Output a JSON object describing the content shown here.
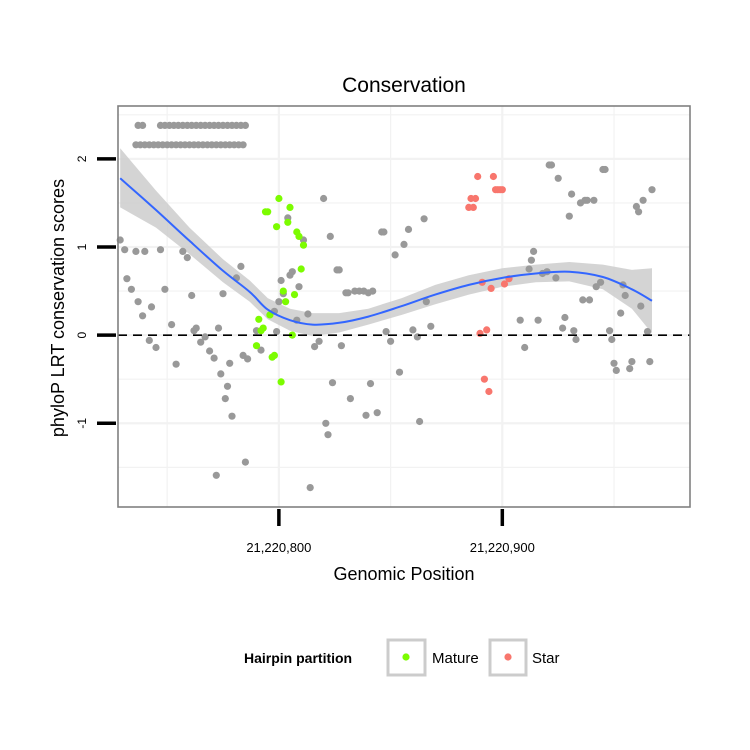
{
  "chart_data": {
    "type": "scatter",
    "title": "Conservation",
    "xlabel": "Genomic Position",
    "ylabel": "phyloP LRT conservation scores",
    "xlim": [
      21220728,
      21220984
    ],
    "ylim": [
      -1.95,
      2.6
    ],
    "x_ticks": [
      21220800,
      21220900
    ],
    "x_tick_labels": [
      "21,220,800",
      "21,220,900"
    ],
    "y_ticks": [
      -1,
      0,
      1,
      2
    ],
    "y_tick_labels": [
      "-1",
      "0",
      "1",
      "2"
    ],
    "grid": true,
    "reference_line": {
      "y": 0,
      "style": "dashed"
    },
    "legend": {
      "title": "Hairpin partition",
      "position": "bottom",
      "entries": [
        {
          "name": "Mature",
          "color": "#7cfc00"
        },
        {
          "name": "Star",
          "color": "#f8766d"
        }
      ]
    },
    "colors": {
      "other": "#999999",
      "smooth_line": "#3366ff",
      "ribbon": "#cccccc",
      "panel_border": "#808080"
    },
    "series": [
      {
        "name": "",
        "color": "#999999",
        "points": [
          [
            21220737,
            2.38
          ],
          [
            21220739,
            2.38
          ],
          [
            21220747,
            2.38
          ],
          [
            21220749,
            2.38
          ],
          [
            21220751,
            2.38
          ],
          [
            21220753,
            2.38
          ],
          [
            21220755,
            2.38
          ],
          [
            21220757,
            2.38
          ],
          [
            21220759,
            2.38
          ],
          [
            21220761,
            2.38
          ],
          [
            21220763,
            2.38
          ],
          [
            21220765,
            2.38
          ],
          [
            21220767,
            2.38
          ],
          [
            21220769,
            2.38
          ],
          [
            21220771,
            2.38
          ],
          [
            21220773,
            2.38
          ],
          [
            21220775,
            2.38
          ],
          [
            21220777,
            2.38
          ],
          [
            21220779,
            2.38
          ],
          [
            21220781,
            2.38
          ],
          [
            21220783,
            2.38
          ],
          [
            21220785,
            2.38
          ],
          [
            21220736,
            2.16
          ],
          [
            21220738,
            2.16
          ],
          [
            21220740,
            2.16
          ],
          [
            21220742,
            2.16
          ],
          [
            21220744,
            2.16
          ],
          [
            21220746,
            2.16
          ],
          [
            21220748,
            2.16
          ],
          [
            21220750,
            2.16
          ],
          [
            21220752,
            2.16
          ],
          [
            21220754,
            2.16
          ],
          [
            21220756,
            2.16
          ],
          [
            21220758,
            2.16
          ],
          [
            21220760,
            2.16
          ],
          [
            21220762,
            2.16
          ],
          [
            21220764,
            2.16
          ],
          [
            21220766,
            2.16
          ],
          [
            21220768,
            2.16
          ],
          [
            21220770,
            2.16
          ],
          [
            21220772,
            2.16
          ],
          [
            21220774,
            2.16
          ],
          [
            21220776,
            2.16
          ],
          [
            21220778,
            2.16
          ],
          [
            21220780,
            2.16
          ],
          [
            21220782,
            2.16
          ],
          [
            21220784,
            2.16
          ],
          [
            21220729,
            1.08
          ],
          [
            21220731,
            0.97
          ],
          [
            21220732,
            0.64
          ],
          [
            21220734,
            0.52
          ],
          [
            21220736,
            0.95
          ],
          [
            21220737,
            0.38
          ],
          [
            21220739,
            0.22
          ],
          [
            21220740,
            0.95
          ],
          [
            21220742,
            -0.06
          ],
          [
            21220743,
            0.32
          ],
          [
            21220745,
            -0.14
          ],
          [
            21220747,
            0.97
          ],
          [
            21220749,
            0.52
          ],
          [
            21220752,
            0.12
          ],
          [
            21220754,
            -0.33
          ],
          [
            21220757,
            0.95
          ],
          [
            21220759,
            0.88
          ],
          [
            21220761,
            0.45
          ],
          [
            21220762,
            0.05
          ],
          [
            21220763,
            0.08
          ],
          [
            21220765,
            -0.08
          ],
          [
            21220767,
            -0.02
          ],
          [
            21220769,
            -0.18
          ],
          [
            21220771,
            -0.26
          ],
          [
            21220773,
            0.08
          ],
          [
            21220774,
            -0.44
          ],
          [
            21220775,
            0.47
          ],
          [
            21220776,
            -0.72
          ],
          [
            21220777,
            -0.58
          ],
          [
            21220778,
            -0.32
          ],
          [
            21220779,
            -0.92
          ],
          [
            21220781,
            0.65
          ],
          [
            21220783,
            0.78
          ],
          [
            21220784,
            -0.23
          ],
          [
            21220785,
            -1.44
          ],
          [
            21220786,
            -0.27
          ],
          [
            21220772,
            -1.59
          ],
          [
            21220790,
            0.05
          ],
          [
            21220792,
            -0.17
          ],
          [
            21220798,
            0.27
          ],
          [
            21220799,
            0.04
          ],
          [
            21220800,
            0.38
          ],
          [
            21220801,
            0.62
          ],
          [
            21220802,
            0.47
          ],
          [
            21220804,
            1.33
          ],
          [
            21220805,
            0.68
          ],
          [
            21220806,
            0.72
          ],
          [
            21220808,
            0.17
          ],
          [
            21220809,
            0.55
          ],
          [
            21220811,
            1.08
          ],
          [
            21220813,
            0.24
          ],
          [
            21220814,
            -1.73
          ],
          [
            21220816,
            -0.13
          ],
          [
            21220818,
            -0.07
          ],
          [
            21220820,
            1.55
          ],
          [
            21220821,
            -1.0
          ],
          [
            21220822,
            -1.13
          ],
          [
            21220823,
            1.12
          ],
          [
            21220824,
            -0.54
          ],
          [
            21220826,
            0.74
          ],
          [
            21220827,
            0.74
          ],
          [
            21220828,
            -0.12
          ],
          [
            21220830,
            0.48
          ],
          [
            21220831,
            0.48
          ],
          [
            21220832,
            -0.72
          ],
          [
            21220834,
            0.5
          ],
          [
            21220836,
            0.5
          ],
          [
            21220838,
            0.5
          ],
          [
            21220839,
            -0.91
          ],
          [
            21220840,
            0.48
          ],
          [
            21220841,
            -0.55
          ],
          [
            21220842,
            0.5
          ],
          [
            21220844,
            -0.88
          ],
          [
            21220846,
            1.17
          ],
          [
            21220847,
            1.17
          ],
          [
            21220848,
            0.04
          ],
          [
            21220850,
            -0.07
          ],
          [
            21220852,
            0.91
          ],
          [
            21220854,
            -0.42
          ],
          [
            21220856,
            1.03
          ],
          [
            21220858,
            1.2
          ],
          [
            21220860,
            0.06
          ],
          [
            21220862,
            -0.02
          ],
          [
            21220863,
            -0.98
          ],
          [
            21220865,
            1.32
          ],
          [
            21220866,
            0.38
          ],
          [
            21220868,
            0.1
          ],
          [
            21220908,
            0.17
          ],
          [
            21220910,
            -0.14
          ],
          [
            21220912,
            0.75
          ],
          [
            21220913,
            0.85
          ],
          [
            21220914,
            0.95
          ],
          [
            21220916,
            0.17
          ],
          [
            21220918,
            0.7
          ],
          [
            21220920,
            0.72
          ],
          [
            21220921,
            1.93
          ],
          [
            21220922,
            1.93
          ],
          [
            21220924,
            0.65
          ],
          [
            21220925,
            1.78
          ],
          [
            21220927,
            0.08
          ],
          [
            21220928,
            0.2
          ],
          [
            21220930,
            1.35
          ],
          [
            21220931,
            1.6
          ],
          [
            21220932,
            0.05
          ],
          [
            21220933,
            -0.05
          ],
          [
            21220935,
            1.5
          ],
          [
            21220936,
            0.4
          ],
          [
            21220937,
            1.53
          ],
          [
            21220938,
            1.53
          ],
          [
            21220939,
            0.4
          ],
          [
            21220941,
            1.53
          ],
          [
            21220942,
            0.55
          ],
          [
            21220944,
            0.6
          ],
          [
            21220945,
            1.88
          ],
          [
            21220946,
            1.88
          ],
          [
            21220948,
            0.05
          ],
          [
            21220949,
            -0.05
          ],
          [
            21220950,
            -0.32
          ],
          [
            21220951,
            -0.4
          ],
          [
            21220953,
            0.25
          ],
          [
            21220954,
            0.57
          ],
          [
            21220955,
            0.45
          ],
          [
            21220957,
            -0.38
          ],
          [
            21220958,
            -0.3
          ],
          [
            21220960,
            1.46
          ],
          [
            21220961,
            1.4
          ],
          [
            21220962,
            0.33
          ],
          [
            21220963,
            1.53
          ],
          [
            21220965,
            0.04
          ],
          [
            21220966,
            -0.3
          ],
          [
            21220967,
            1.65
          ]
        ]
      },
      {
        "name": "Mature",
        "color": "#7cfc00",
        "points": [
          [
            21220790,
            -0.12
          ],
          [
            21220791,
            0.18
          ],
          [
            21220792,
            0.05
          ],
          [
            21220793,
            0.08
          ],
          [
            21220794,
            1.4
          ],
          [
            21220795,
            1.4
          ],
          [
            21220796,
            0.23
          ],
          [
            21220797,
            -0.25
          ],
          [
            21220798,
            -0.23
          ],
          [
            21220799,
            1.23
          ],
          [
            21220800,
            1.55
          ],
          [
            21220801,
            -0.53
          ],
          [
            21220802,
            0.5
          ],
          [
            21220803,
            0.38
          ],
          [
            21220804,
            1.28
          ],
          [
            21220805,
            1.45
          ],
          [
            21220806,
            0.0
          ],
          [
            21220807,
            0.46
          ],
          [
            21220808,
            1.17
          ],
          [
            21220809,
            1.12
          ],
          [
            21220810,
            0.75
          ],
          [
            21220811,
            1.02
          ]
        ]
      },
      {
        "name": "Star",
        "color": "#f8766d",
        "points": [
          [
            21220885,
            1.45
          ],
          [
            21220886,
            1.55
          ],
          [
            21220887,
            1.45
          ],
          [
            21220888,
            1.55
          ],
          [
            21220889,
            1.8
          ],
          [
            21220890,
            0.02
          ],
          [
            21220891,
            0.6
          ],
          [
            21220892,
            -0.5
          ],
          [
            21220893,
            0.06
          ],
          [
            21220894,
            -0.64
          ],
          [
            21220895,
            0.53
          ],
          [
            21220896,
            1.8
          ],
          [
            21220897,
            1.65
          ],
          [
            21220898,
            1.65
          ],
          [
            21220899,
            1.65
          ],
          [
            21220900,
            1.65
          ],
          [
            21220901,
            0.58
          ],
          [
            21220903,
            0.64
          ]
        ]
      }
    ],
    "smooth": {
      "x": [
        21220729,
        21220745,
        21220760,
        21220775,
        21220787,
        21220795,
        21220805,
        21220815,
        21220827,
        21220840,
        21220855,
        21220870,
        21220885,
        21220900,
        21220915,
        21220930,
        21220945,
        21220958,
        21220967
      ],
      "y": [
        1.78,
        1.42,
        1.07,
        0.73,
        0.49,
        0.29,
        0.17,
        0.12,
        0.14,
        0.21,
        0.33,
        0.46,
        0.57,
        0.65,
        0.7,
        0.72,
        0.66,
        0.52,
        0.39
      ],
      "lower": [
        1.45,
        1.22,
        0.92,
        0.6,
        0.38,
        0.18,
        0.05,
        -0.01,
        0.03,
        0.12,
        0.23,
        0.35,
        0.46,
        0.55,
        0.6,
        0.61,
        0.52,
        0.3,
        0.02
      ],
      "upper": [
        2.12,
        1.64,
        1.22,
        0.86,
        0.62,
        0.42,
        0.3,
        0.25,
        0.25,
        0.3,
        0.42,
        0.57,
        0.68,
        0.76,
        0.8,
        0.83,
        0.8,
        0.74,
        0.76
      ]
    }
  }
}
